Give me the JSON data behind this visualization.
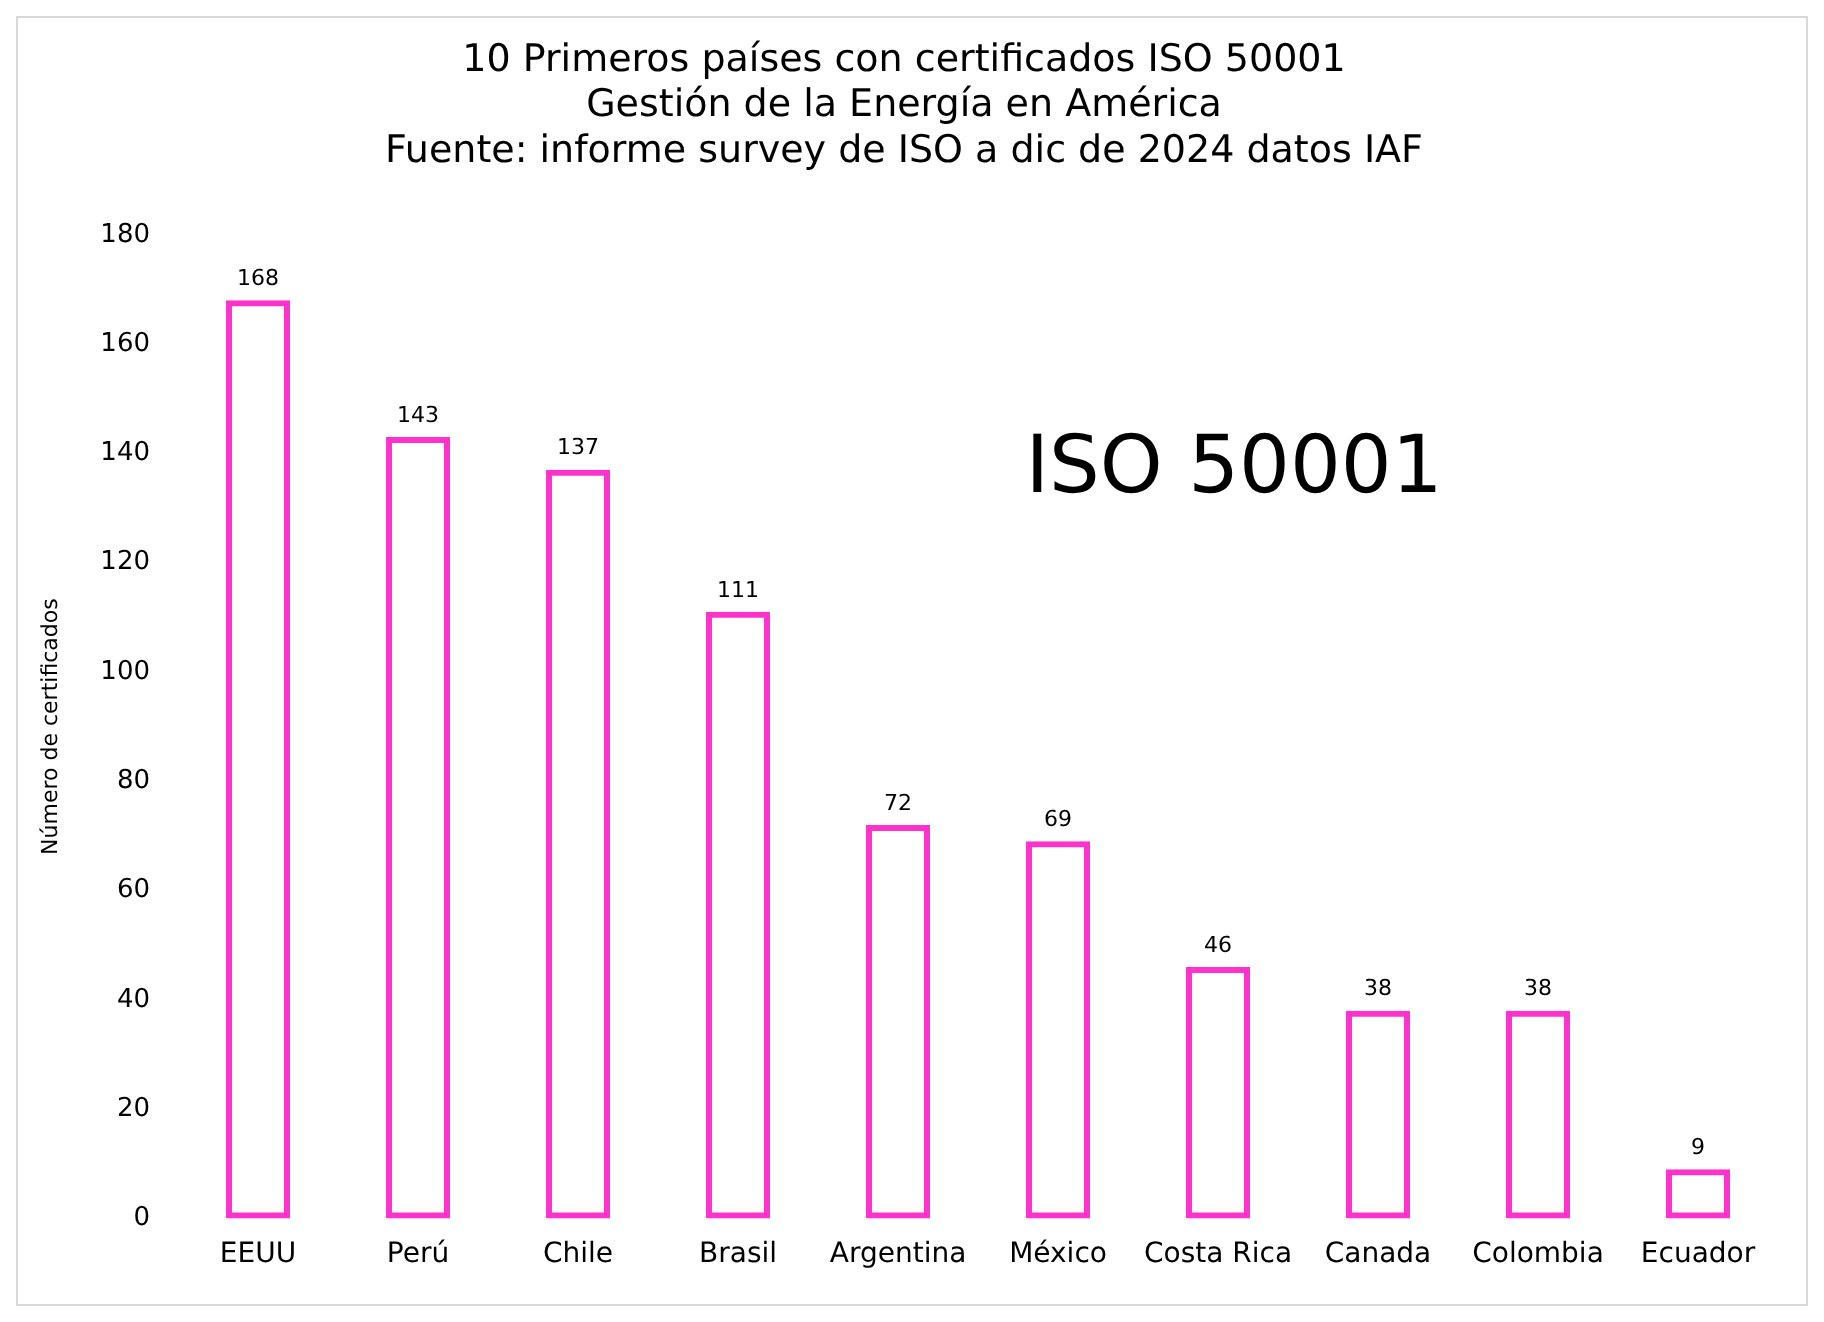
{
  "chart_data": {
    "type": "bar",
    "title": "10 Primeros países con certificados ISO 50001",
    "subtitle": "Gestión de la Energía en América",
    "annotations": [
      "Fuente: informe survey de ISO a dic de 2024 datos IAF",
      "ISO 50001"
    ],
    "ylabel": "Número de certificados",
    "categories": [
      "EEUU",
      "Perú",
      "Chile",
      "Brasil",
      "Argentina",
      "México",
      "Costa Rica",
      "Canada",
      "Colombia",
      "Ecuador"
    ],
    "values": [
      168,
      143,
      137,
      111,
      72,
      69,
      46,
      38,
      38,
      9
    ],
    "color": "#ff33cc",
    "ylim": [
      0,
      180
    ],
    "yticks": [
      0,
      20,
      40,
      60,
      80,
      100,
      120,
      140,
      160,
      180
    ],
    "grid": false,
    "legend": false,
    "data_labels": true
  }
}
